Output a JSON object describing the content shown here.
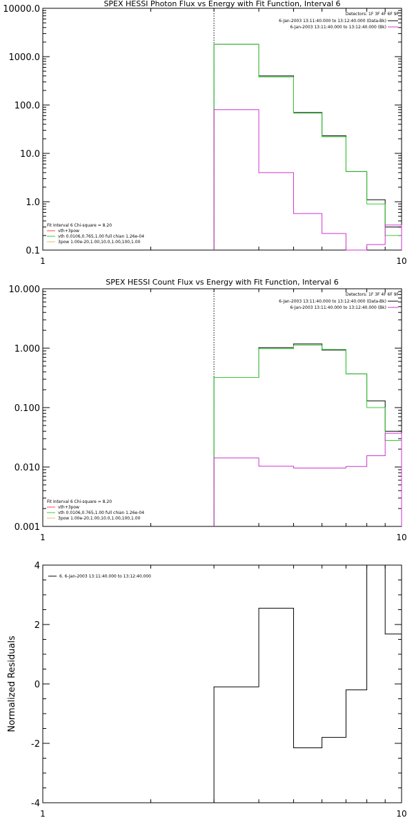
{
  "chart_data": [
    {
      "type": "line",
      "title": "SPEX HESSI Photon Flux vs Energy with Fit Function, Interval 6",
      "xlabel": "",
      "ylabel": "",
      "x_scale": "log",
      "y_scale": "log",
      "xlim": [
        1,
        10
      ],
      "ylim": [
        0.1,
        10000
      ],
      "x_tick_labels": [
        "1",
        "10"
      ],
      "y_tick_labels": [
        "0.1",
        "1.0",
        "10.0",
        "100.0",
        "1000.0",
        "10000.0"
      ],
      "y_ticks": [
        0.1,
        1,
        10,
        100,
        1000,
        10000
      ],
      "detector_info": "Detectors: 1F 3F 4F 6F 9F",
      "legend_top": [
        {
          "label": "6-Jan-2003 13:11:40.000 to 13:12:40.000 (Data-Bk)",
          "color": "#000000"
        },
        {
          "label": "6-Jan-2003 13:11:40.000 to 13:12:40.000 (Bk)",
          "color": "#cc33cc"
        }
      ],
      "legend_fit": {
        "header": "Fit Interval 6   Chi-square = 8.20",
        "items": [
          {
            "label": "vth+3pow",
            "color": "#ff4444"
          },
          {
            "label": "vth 0.0106,0.765,1.00  full chian 1.26e-04",
            "color": "#33cc33"
          },
          {
            "label": "3pow 1.00e-20,1.00,10.0,1.00,100,1.00",
            "color": "#e0c060"
          }
        ]
      },
      "marker_x": 3,
      "bin_edges": [
        3,
        4,
        5,
        6,
        7,
        8,
        9,
        10
      ],
      "series": [
        {
          "name": "Data-Bk",
          "color": "#000000",
          "values": [
            1800,
            400,
            70,
            23,
            4.2,
            1.1,
            0.3
          ]
        },
        {
          "name": "vth",
          "color": "#33cc33",
          "values": [
            1800,
            380,
            68,
            22,
            4.2,
            0.9,
            0.2
          ]
        },
        {
          "name": "Bk",
          "color": "#cc33cc",
          "values": [
            80,
            4,
            0.57,
            0.22,
            0.1,
            0.13,
            0.33
          ]
        }
      ]
    },
    {
      "type": "line",
      "title": "SPEX HESSI Count Flux vs Energy with Fit Function, Interval 6",
      "xlabel": "",
      "ylabel": "",
      "x_scale": "log",
      "y_scale": "log",
      "xlim": [
        1,
        10
      ],
      "ylim": [
        0.001,
        10
      ],
      "x_tick_labels": [
        "1",
        "10"
      ],
      "y_tick_labels": [
        "0.001",
        "0.010",
        "0.100",
        "1.000",
        "10.000"
      ],
      "y_ticks": [
        0.001,
        0.01,
        0.1,
        1,
        10
      ],
      "detector_info": "Detectors: 1F 3F 4F 6F 9F",
      "legend_top": [
        {
          "label": "6-Jan-2003 13:11:40.000 to 13:12:40.000 (Data-Bk)",
          "color": "#000000"
        },
        {
          "label": "6-Jan-2003 13:11:40.000 to 13:12:40.000 (Bk)",
          "color": "#cc33cc"
        }
      ],
      "legend_fit": {
        "header": "Fit Interval 6   Chi-square = 8.20",
        "items": [
          {
            "label": "vth+3pow",
            "color": "#ff4444"
          },
          {
            "label": "vth 0.0106,0.765,1.00  full chian 1.26e-04",
            "color": "#33cc33"
          },
          {
            "label": "3pow 1.00e-20,1.00,10.0,1.00,100,1.00",
            "color": "#e0c060"
          }
        ]
      },
      "marker_x": 3,
      "bin_edges": [
        3,
        4,
        5,
        6,
        7,
        8,
        9,
        10
      ],
      "series": [
        {
          "name": "Data-Bk",
          "color": "#000000",
          "values": [
            0.32,
            1.02,
            1.18,
            0.93,
            0.37,
            0.13,
            0.04
          ]
        },
        {
          "name": "vth",
          "color": "#33cc33",
          "values": [
            0.32,
            0.98,
            1.12,
            0.95,
            0.37,
            0.1,
            0.028
          ]
        },
        {
          "name": "Bk",
          "color": "#cc33cc",
          "values": [
            0.0142,
            0.0103,
            0.0096,
            0.0096,
            0.0102,
            0.0155,
            0.037
          ]
        }
      ]
    },
    {
      "type": "line",
      "title": "",
      "xlabel": "",
      "ylabel": "Normalized Residuals",
      "x_scale": "log",
      "y_scale": "linear",
      "xlim": [
        1,
        10
      ],
      "ylim": [
        -4,
        4
      ],
      "x_tick_labels": [
        "1",
        "10"
      ],
      "y_tick_labels": [
        "-4",
        "-2",
        "0",
        "2",
        "4"
      ],
      "y_ticks": [
        -4,
        -2,
        0,
        2,
        4
      ],
      "legend": [
        {
          "label": "6. 6-Jan-2003 13:11:40.000 to 13:12:40.000",
          "color": "#000000"
        }
      ],
      "bin_edges": [
        3,
        4,
        5,
        6,
        7,
        8,
        9,
        10
      ],
      "series": [
        {
          "name": "residuals",
          "color": "#000000",
          "values": [
            -0.1,
            2.55,
            -2.15,
            -1.8,
            -0.2,
            4.0,
            1.68
          ]
        }
      ]
    }
  ]
}
